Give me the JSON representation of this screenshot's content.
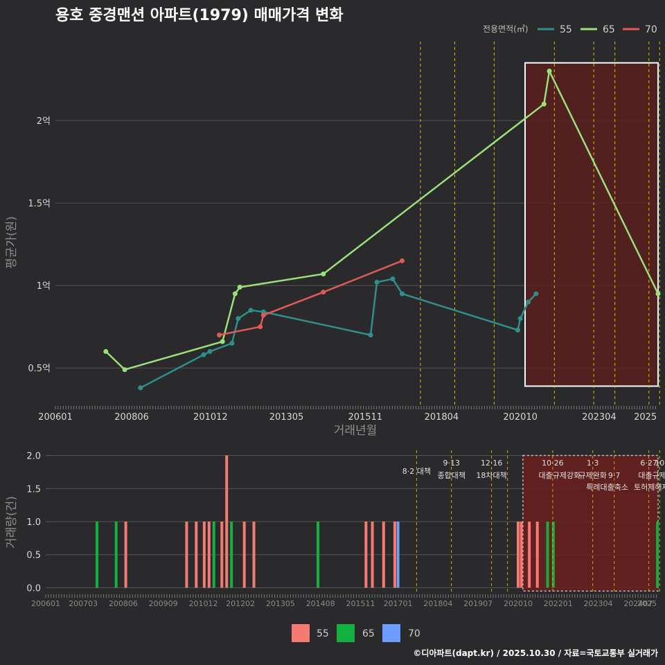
{
  "title": "용호 중경맨션 아파트(1979) 매매가격 변화",
  "credit": "©디아파트(dapt.kr) / 2025.10.30 / 자료=국토교통부 실거래가",
  "colors": {
    "s55_price": "#2f8f8a",
    "s65_price": "#9be07a",
    "s70_price": "#e05a5a",
    "s55_vol": "#f47a72",
    "s65_vol": "#12b03e",
    "s70_vol": "#6d9dff",
    "event_line": "#e0c400",
    "event_line_vol": "#e0a000",
    "highlight_fill": "#5a1f1f",
    "grid": "#555555"
  },
  "chart_data": [
    {
      "type": "line",
      "title": "용호 중경맨션 아파트(1979) 매매가격 변화",
      "xlabel": "거래년월",
      "ylabel": "평균가(원)",
      "x_ticks": [
        "200601",
        "200806",
        "201012",
        "201305",
        "201511",
        "201804",
        "202010",
        "202304",
        "2025"
      ],
      "x_tick_values": [
        2006.0,
        2008.42,
        2010.92,
        2013.33,
        2015.83,
        2018.25,
        2020.75,
        2023.25,
        2025.08
      ],
      "y_ticks": [
        {
          "value": 0.5,
          "label": "0.5억"
        },
        {
          "value": 1.0,
          "label": "1억"
        },
        {
          "value": 1.5,
          "label": "1.5억"
        },
        {
          "value": 2.0,
          "label": "2억"
        }
      ],
      "xlim": [
        2006.0,
        2025.12
      ],
      "ylim": [
        0.27,
        2.5
      ],
      "y_unit": "억",
      "legend_title": "전용면적(㎡)",
      "series": [
        {
          "name": "55",
          "color_key": "s55_price",
          "points": [
            [
              2008.7,
              0.38
            ],
            [
              2010.7,
              0.58
            ],
            [
              2010.9,
              0.6
            ],
            [
              2011.6,
              0.65
            ],
            [
              2011.8,
              0.8
            ],
            [
              2012.2,
              0.85
            ],
            [
              2012.6,
              0.84
            ],
            [
              2016.0,
              0.7
            ],
            [
              2016.2,
              1.02
            ],
            [
              2016.7,
              1.04
            ],
            [
              2017.0,
              0.95
            ],
            [
              2020.67,
              0.73
            ],
            [
              2020.75,
              0.8
            ],
            [
              2021.0,
              0.9
            ],
            [
              2021.25,
              0.95
            ]
          ]
        },
        {
          "name": "65",
          "color_key": "s65_price",
          "points": [
            [
              2007.6,
              0.6
            ],
            [
              2008.2,
              0.49
            ],
            [
              2011.3,
              0.66
            ],
            [
              2011.7,
              0.95
            ],
            [
              2011.85,
              0.99
            ],
            [
              2014.5,
              1.07
            ],
            [
              2021.5,
              2.1
            ],
            [
              2021.67,
              2.3
            ],
            [
              2025.12,
              0.95
            ]
          ]
        },
        {
          "name": "70",
          "color_key": "s70_price",
          "points": [
            [
              2011.2,
              0.7
            ],
            [
              2012.5,
              0.75
            ],
            [
              2012.6,
              0.82
            ],
            [
              2014.5,
              0.96
            ],
            [
              2017.0,
              1.15
            ]
          ]
        }
      ],
      "events": [
        2017.58,
        2018.67,
        2019.92,
        2021.83,
        2023.08,
        2023.75,
        2024.83,
        2025.17,
        2025.5
      ],
      "highlight_range": {
        "x": [
          2020.9,
          2025.12
        ],
        "y": [
          0.39,
          2.35
        ]
      }
    },
    {
      "type": "bar",
      "xlabel": "",
      "ylabel": "거래량(건)",
      "x_ticks": [
        "200601",
        "200703",
        "200806",
        "200909",
        "201012",
        "201202",
        "201305",
        "201408",
        "201511",
        "201701",
        "201804",
        "201907",
        "202010",
        "202201",
        "202304",
        "202407",
        "2025"
      ],
      "x_tick_values": [
        2006.0,
        2007.17,
        2008.42,
        2009.67,
        2010.92,
        2012.08,
        2013.33,
        2014.58,
        2015.83,
        2017.0,
        2018.25,
        2019.5,
        2020.75,
        2022.0,
        2023.25,
        2024.5,
        2025.08
      ],
      "y_ticks": [
        {
          "value": 0.0,
          "label": "0.0"
        },
        {
          "value": 0.5,
          "label": "0.5"
        },
        {
          "value": 1.0,
          "label": "1.0"
        },
        {
          "value": 1.5,
          "label": "1.5"
        },
        {
          "value": 2.0,
          "label": "2.0"
        }
      ],
      "xlim": [
        2006.0,
        2025.12
      ],
      "ylim": [
        -0.1,
        2.1
      ],
      "bars": [
        {
          "x": 2007.6,
          "series": "65",
          "value": 1
        },
        {
          "x": 2008.2,
          "series": "65",
          "value": 1
        },
        {
          "x": 2008.5,
          "series": "55",
          "value": 1
        },
        {
          "x": 2010.4,
          "series": "55",
          "value": 1
        },
        {
          "x": 2010.7,
          "series": "55",
          "value": 1
        },
        {
          "x": 2010.95,
          "series": "55",
          "value": 1
        },
        {
          "x": 2011.1,
          "series": "55",
          "value": 1
        },
        {
          "x": 2011.25,
          "series": "65",
          "value": 1
        },
        {
          "x": 2011.5,
          "series": "55",
          "value": 1
        },
        {
          "x": 2011.65,
          "series": "55",
          "value": 2
        },
        {
          "x": 2011.8,
          "series": "65",
          "value": 1
        },
        {
          "x": 2012.2,
          "series": "55",
          "value": 1
        },
        {
          "x": 2012.5,
          "series": "70",
          "value": 1
        },
        {
          "x": 2012.5,
          "series": "55",
          "value": 1
        },
        {
          "x": 2014.5,
          "series": "70",
          "value": 1
        },
        {
          "x": 2014.5,
          "series": "65",
          "value": 1
        },
        {
          "x": 2016.0,
          "series": "55",
          "value": 1
        },
        {
          "x": 2016.2,
          "series": "55",
          "value": 1
        },
        {
          "x": 2016.55,
          "series": "55",
          "value": 1
        },
        {
          "x": 2016.9,
          "series": "55",
          "value": 1
        },
        {
          "x": 2017.0,
          "series": "70",
          "value": 1
        },
        {
          "x": 2020.75,
          "series": "55",
          "value": 1
        },
        {
          "x": 2020.85,
          "series": "55",
          "value": 1
        },
        {
          "x": 2021.1,
          "series": "55",
          "value": 1
        },
        {
          "x": 2021.35,
          "series": "55",
          "value": 1
        },
        {
          "x": 2021.67,
          "series": "65",
          "value": 1
        },
        {
          "x": 2021.85,
          "series": "65",
          "value": 1
        },
        {
          "x": 2025.1,
          "series": "65",
          "value": 1
        }
      ],
      "events": [
        {
          "x": 2017.58,
          "label": "8·2 대책",
          "label2": ""
        },
        {
          "x": 2018.67,
          "label": "9·13",
          "label2": "종합대책"
        },
        {
          "x": 2019.92,
          "label": "12·16",
          "label2": "18차대책"
        },
        {
          "x": 2020.42,
          "label": "",
          "label2": ""
        },
        {
          "x": 2021.83,
          "label": "10·26",
          "label2": "대출규제강화"
        },
        {
          "x": 2023.08,
          "label": "1·3",
          "label2": "규제완화"
        },
        {
          "x": 2023.75,
          "label": "",
          "label2": "9·7 특례대출축소"
        },
        {
          "x": 2024.83,
          "label": "6·27",
          "label2": "대출규제"
        },
        {
          "x": 2025.17,
          "label": "10",
          "label2": "토허제해제"
        },
        {
          "x": 2025.5,
          "label": "",
          "label2": ""
        }
      ],
      "event_labels_extra": {
        "a": "9·7",
        "b": "특례대출축소",
        "c": "토허제해제"
      },
      "highlight_range": {
        "x": [
          2020.9,
          2025.12
        ],
        "y": [
          -0.05,
          2.0
        ]
      }
    }
  ],
  "legend_bottom": [
    {
      "name": "55",
      "color_key": "s55_vol"
    },
    {
      "name": "65",
      "color_key": "s65_vol"
    },
    {
      "name": "70",
      "color_key": "s70_vol"
    }
  ]
}
